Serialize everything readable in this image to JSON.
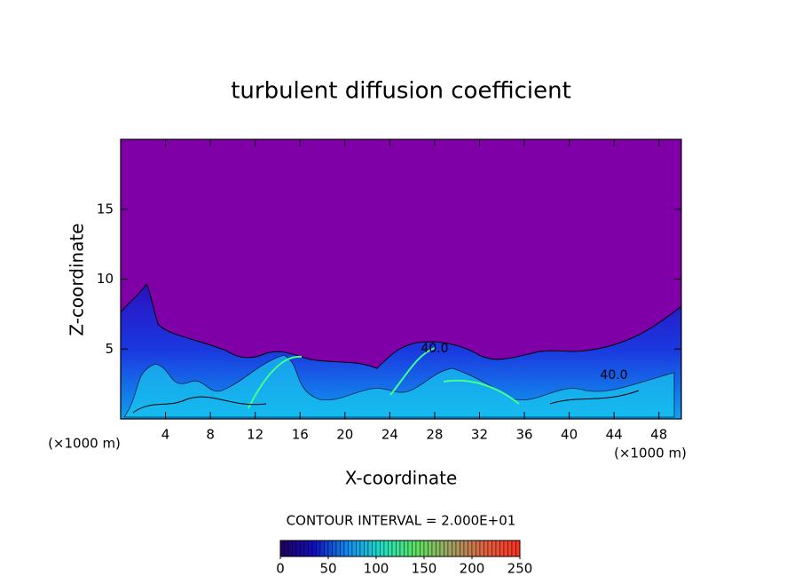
{
  "chart_data": {
    "type": "contour",
    "title": "turbulent diffusion coefficient",
    "xlabel": "X-coordinate",
    "ylabel": "Z-coordinate",
    "x_unit": "(×1000 m)",
    "xlim": [
      0,
      50
    ],
    "xticks": [
      4,
      8,
      12,
      16,
      20,
      24,
      28,
      32,
      36,
      40,
      44,
      48
    ],
    "ylim": [
      0,
      20
    ],
    "yticks": [
      5,
      10,
      15
    ],
    "contour_labels": [
      "40.0",
      "40.0"
    ],
    "contour_interval": "CONTOUR INTERVAL = 2.000E+01",
    "colorbar": {
      "lim": [
        0,
        250
      ],
      "ticks": [
        0,
        50,
        100,
        150,
        200,
        250
      ],
      "colors": [
        "#200060",
        "#1010c0",
        "#1090f0",
        "#20e0c0",
        "#60e060",
        "#a0a060",
        "#e06040",
        "#ff3020"
      ]
    }
  }
}
